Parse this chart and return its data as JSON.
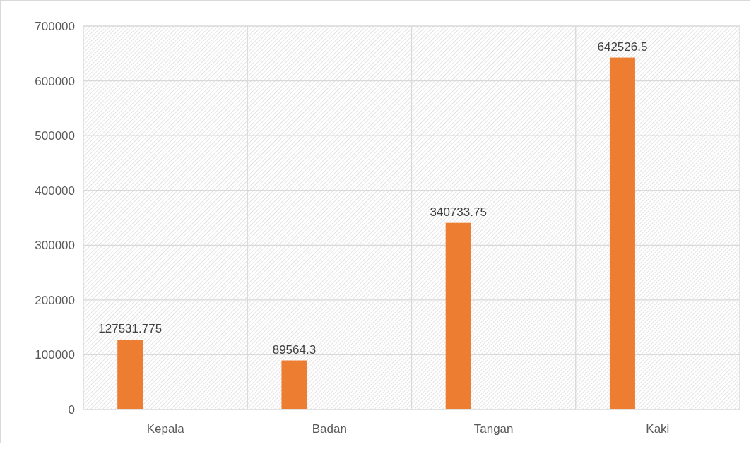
{
  "chart_data": {
    "type": "bar",
    "categories": [
      "Kepala",
      "Badan",
      "Tangan",
      "Kaki"
    ],
    "values": [
      127531.775,
      89564.3,
      340733.75,
      642526.5
    ],
    "color": "#ed7d31",
    "ylim": [
      0,
      700000
    ],
    "yticks": [
      0,
      100000,
      200000,
      300000,
      400000,
      500000,
      600000,
      700000
    ],
    "grid": true,
    "data_labels": true
  }
}
